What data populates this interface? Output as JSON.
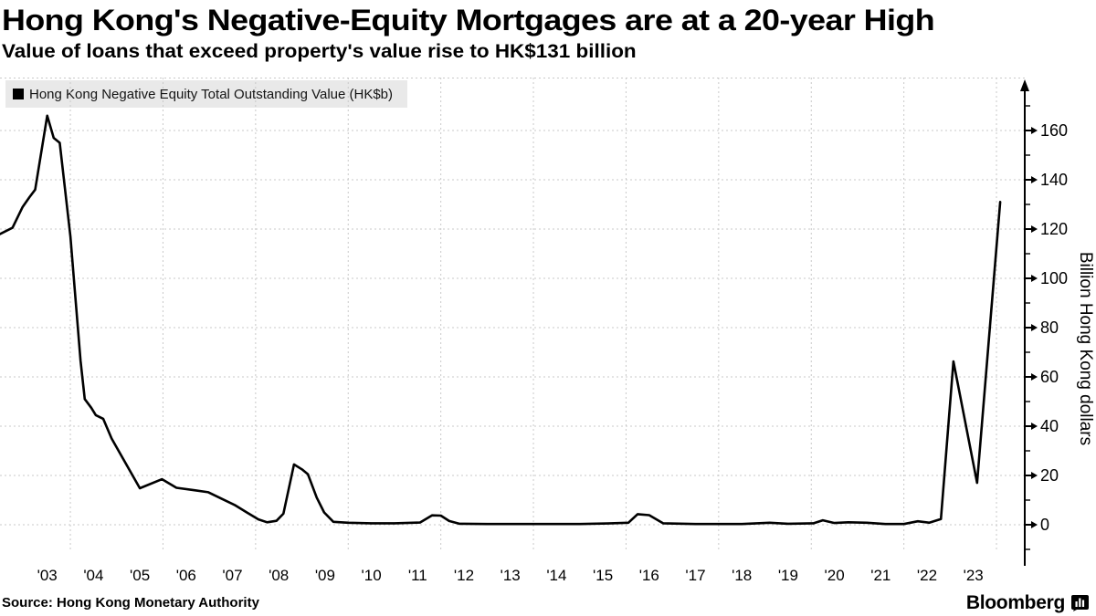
{
  "header": {
    "title": "Hong Kong's Negative-Equity Mortgages are at a 20-year High",
    "subtitle": "Value of loans that exceed property's value rise to HK$131 billion"
  },
  "legend": {
    "label": "Hong Kong Negative Equity Total Outstanding Value (HK$b)",
    "swatch_color": "#000000"
  },
  "footer": {
    "source": "Source: Hong Kong Monetary Authority",
    "brand": "Bloomberg"
  },
  "chart_data": {
    "type": "line",
    "series_name": "Hong Kong Negative Equity Total Outstanding Value (HK$b)",
    "unit": "HK$ billion",
    "ylabel": "Billion Hong Kong dollars",
    "xlabel": "",
    "x_tick_labels": [
      "'03",
      "'04",
      "'05",
      "'06",
      "'07",
      "'08",
      "'09",
      "'10",
      "'11",
      "'12",
      "'13",
      "'14",
      "'15",
      "'16",
      "'17",
      "'18",
      "'19",
      "'20",
      "'21",
      "'22",
      "'23"
    ],
    "x_tick_years": [
      2003,
      2004,
      2005,
      2006,
      2007,
      2008,
      2009,
      2010,
      2011,
      2012,
      2013,
      2014,
      2015,
      2016,
      2017,
      2018,
      2019,
      2020,
      2021,
      2022,
      2023
    ],
    "y_ticks": [
      0,
      20,
      40,
      60,
      80,
      100,
      120,
      140,
      160
    ],
    "ylim": [
      0,
      180
    ],
    "xlim_years": [
      2002.45,
      2024.6
    ],
    "grid": {
      "style": "dashed",
      "horizontal_every": 20,
      "vertical_every_years": 2
    },
    "legend_position": "top-left",
    "line_color": "#000000",
    "grid_color": "#c9c9c9",
    "key_values": {
      "peak_2003": 166,
      "crisis_2008": 24.5,
      "end_2022": 66,
      "mid_2023_dip": 17,
      "final_2023": 131
    },
    "points": [
      [
        2002.48,
        118
      ],
      [
        2002.75,
        120.5
      ],
      [
        2002.97,
        129
      ],
      [
        2003.12,
        133
      ],
      [
        2003.24,
        136
      ],
      [
        2003.5,
        166
      ],
      [
        2003.64,
        157
      ],
      [
        2003.77,
        155
      ],
      [
        2004.0,
        117
      ],
      [
        2004.22,
        66.5
      ],
      [
        2004.31,
        51
      ],
      [
        2004.45,
        47.5
      ],
      [
        2004.55,
        44.5
      ],
      [
        2004.71,
        43
      ],
      [
        2004.89,
        35
      ],
      [
        2005.5,
        14.8
      ],
      [
        2005.98,
        18.5
      ],
      [
        2006.29,
        15
      ],
      [
        2006.68,
        14
      ],
      [
        2006.98,
        13.2
      ],
      [
        2007.27,
        10.5
      ],
      [
        2007.55,
        8
      ],
      [
        2007.81,
        5
      ],
      [
        2008.06,
        2.2
      ],
      [
        2008.25,
        1
      ],
      [
        2008.45,
        1.6
      ],
      [
        2008.6,
        4.5
      ],
      [
        2008.83,
        24.5
      ],
      [
        2009.0,
        22.5
      ],
      [
        2009.13,
        20.5
      ],
      [
        2009.32,
        11
      ],
      [
        2009.48,
        5
      ],
      [
        2009.68,
        1.2
      ],
      [
        2010.0,
        0.8
      ],
      [
        2010.5,
        0.6
      ],
      [
        2011.0,
        0.6
      ],
      [
        2011.55,
        0.9
      ],
      [
        2011.81,
        3.8
      ],
      [
        2012.0,
        3.7
      ],
      [
        2012.18,
        1.5
      ],
      [
        2012.4,
        0.4
      ],
      [
        2013.0,
        0.3
      ],
      [
        2014.0,
        0.3
      ],
      [
        2015.0,
        0.3
      ],
      [
        2015.6,
        0.5
      ],
      [
        2016.05,
        0.8
      ],
      [
        2016.25,
        4.3
      ],
      [
        2016.5,
        3.9
      ],
      [
        2016.8,
        0.6
      ],
      [
        2017.5,
        0.3
      ],
      [
        2018.5,
        0.3
      ],
      [
        2019.1,
        0.8
      ],
      [
        2019.5,
        0.4
      ],
      [
        2020.05,
        0.6
      ],
      [
        2020.25,
        1.8
      ],
      [
        2020.5,
        0.7
      ],
      [
        2020.8,
        1.0
      ],
      [
        2021.2,
        0.8
      ],
      [
        2021.6,
        0.3
      ],
      [
        2022.0,
        0.3
      ],
      [
        2022.3,
        1.4
      ],
      [
        2022.55,
        0.8
      ],
      [
        2022.8,
        2.3
      ],
      [
        2023.07,
        66.3
      ],
      [
        2023.58,
        17
      ],
      [
        2024.08,
        131
      ]
    ]
  }
}
